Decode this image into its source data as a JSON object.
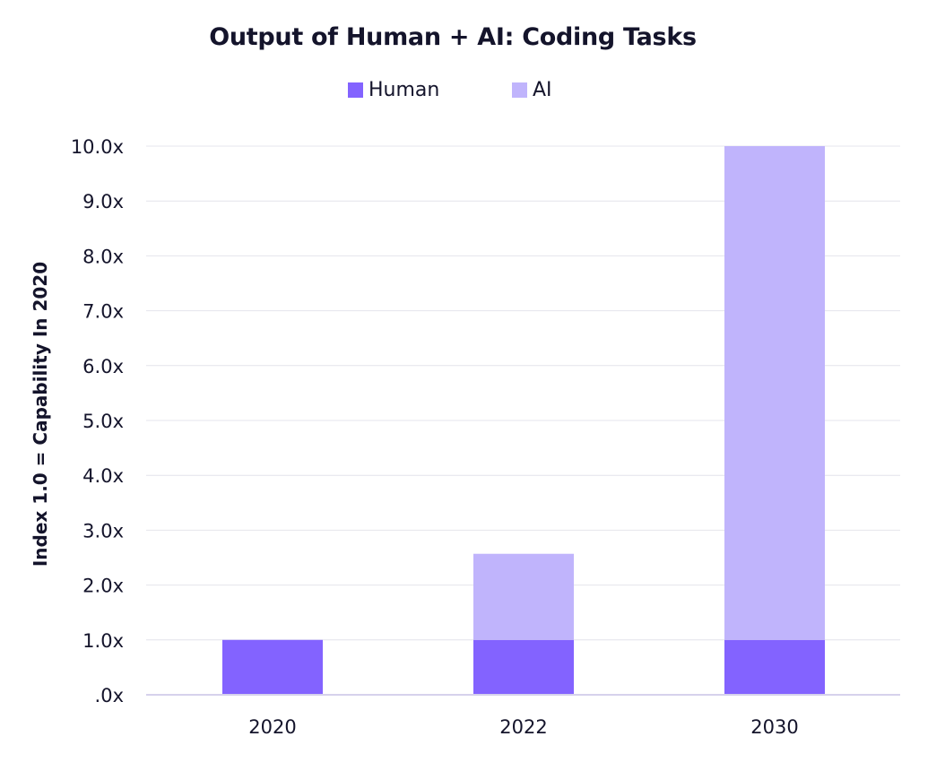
{
  "chart_data": {
    "type": "bar",
    "stacked": true,
    "title": "Output of Human + AI: Coding Tasks",
    "xlabel": "",
    "ylabel": "Index 1.0 = Capability In 2020",
    "categories": [
      "2020",
      "2022",
      "2030"
    ],
    "series": [
      {
        "name": "Human",
        "color": "#8363ff",
        "values": [
          1.0,
          1.0,
          1.0
        ]
      },
      {
        "name": "AI",
        "color": "#c0b4fc",
        "values": [
          0.0,
          1.57,
          9.0
        ]
      }
    ],
    "ylim": [
      0,
      10
    ],
    "yticks": [
      0,
      1,
      2,
      3,
      4,
      5,
      6,
      7,
      8,
      9,
      10
    ],
    "ytick_labels": [
      ".0x",
      "1.0x",
      "2.0x",
      "3.0x",
      "4.0x",
      "5.0x",
      "6.0x",
      "7.0x",
      "8.0x",
      "9.0x",
      "10.0x"
    ],
    "grid": true,
    "legend_position": "top-center",
    "colors": {
      "grid": "#e4e4ec",
      "axis": "#d6d2ec",
      "text": "#14142b"
    }
  }
}
